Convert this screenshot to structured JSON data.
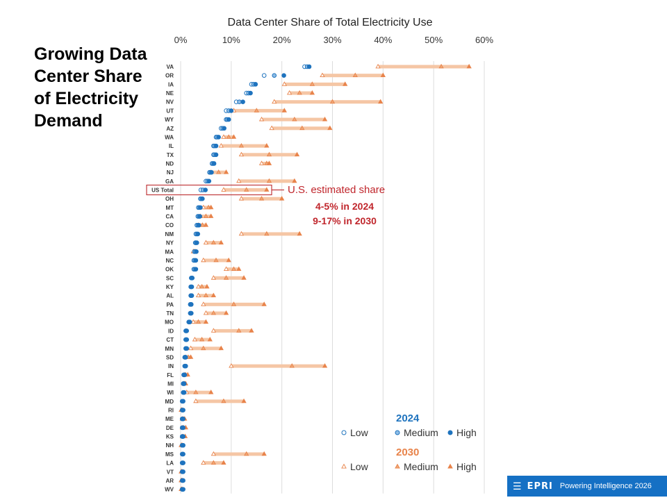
{
  "slide": {
    "title": "Growing Data Center Share of Electricity Demand"
  },
  "footer": {
    "menu_icon": "hamburger-menu-icon",
    "logo_text": "EPRI",
    "text": "Powering Intelligence 2026"
  },
  "chart_data": {
    "type": "scatter",
    "title": "Data Center Share of Total Electricity Use",
    "x_tick_labels": [
      "0%",
      "10%",
      "20%",
      "30%",
      "40%",
      "50%",
      "60%"
    ],
    "xlim": [
      0,
      60
    ],
    "grid": true,
    "states": [
      "VA",
      "OR",
      "IA",
      "NE",
      "NV",
      "UT",
      "WY",
      "AZ",
      "WA",
      "IL",
      "TX",
      "ND",
      "NJ",
      "GA",
      "US Total",
      "OH",
      "MT",
      "CA",
      "CO",
      "NM",
      "NY",
      "MA",
      "NC",
      "OK",
      "SC",
      "KY",
      "AL",
      "PA",
      "TN",
      "MO",
      "ID",
      "CT",
      "MN",
      "SD",
      "IN",
      "FL",
      "MI",
      "WI",
      "MD",
      "RI",
      "ME",
      "DE",
      "KS",
      "NH",
      "MS",
      "LA",
      "VT",
      "AR",
      "WV"
    ],
    "share_2024": {
      "low": [
        24.5,
        16.5,
        14.0,
        13.0,
        11.0,
        9.0,
        9.0,
        8.0,
        7.0,
        6.5,
        6.5,
        6.2,
        5.7,
        5.0,
        4.0,
        3.9,
        3.5,
        3.4,
        3.2,
        3.0,
        2.9,
        2.7,
        2.6,
        2.6,
        2.1,
        2.0,
        2.0,
        1.9,
        1.9,
        1.6,
        1.0,
        1.0,
        1.0,
        0.8,
        0.8,
        0.6,
        0.5,
        0.5,
        0.3,
        0.3,
        0.3,
        0.3,
        0.3,
        0.3,
        0.3,
        0.3,
        0.3,
        0.3,
        0.3
      ],
      "medium": [
        25.0,
        18.5,
        14.4,
        13.4,
        11.6,
        9.5,
        9.2,
        8.3,
        7.2,
        6.7,
        6.7,
        6.4,
        5.9,
        5.3,
        4.4,
        4.1,
        3.7,
        3.6,
        3.4,
        3.2,
        3.0,
        2.9,
        2.8,
        2.8,
        2.2,
        2.1,
        2.1,
        2.0,
        2.0,
        1.7,
        1.1,
        1.1,
        1.1,
        0.9,
        0.9,
        0.7,
        0.6,
        0.6,
        0.4,
        0.4,
        0.4,
        0.4,
        0.4,
        0.4,
        0.4,
        0.4,
        0.4,
        0.4,
        0.4
      ],
      "high": [
        25.4,
        20.4,
        14.8,
        13.8,
        12.3,
        10.0,
        9.5,
        8.6,
        7.5,
        7.0,
        7.0,
        6.6,
        6.1,
        5.6,
        4.9,
        4.3,
        3.9,
        3.8,
        3.6,
        3.4,
        3.2,
        3.1,
        3.0,
        3.0,
        2.3,
        2.2,
        2.2,
        2.1,
        2.1,
        1.8,
        1.2,
        1.2,
        1.2,
        1.0,
        1.0,
        0.8,
        0.7,
        0.7,
        0.5,
        0.5,
        0.5,
        0.5,
        0.5,
        0.5,
        0.5,
        0.5,
        0.5,
        0.5,
        0.5
      ]
    },
    "share_2030": {
      "low": [
        39.0,
        28.0,
        20.5,
        21.5,
        18.5,
        10.5,
        16.0,
        18.0,
        8.5,
        8.0,
        12.0,
        16.0,
        6.0,
        11.5,
        8.5,
        12.0,
        4.5,
        3.9,
        3.5,
        12.0,
        5.0,
        2.5,
        4.5,
        9.0,
        6.5,
        3.5,
        3.5,
        4.5,
        5.0,
        2.5,
        6.5,
        2.8,
        2.0,
        1.0,
        10.0,
        0.8,
        0.6,
        1.2,
        3.0,
        0.1,
        0.3,
        0.3,
        0.3,
        0.1,
        6.5,
        4.5,
        0.1,
        0.1,
        0.1
      ],
      "medium": [
        51.5,
        34.5,
        26.0,
        23.5,
        30.0,
        15.0,
        22.5,
        24.0,
        9.5,
        12.0,
        17.5,
        17.0,
        7.5,
        17.5,
        13.0,
        16.0,
        5.5,
        5.0,
        4.3,
        17.0,
        6.5,
        2.7,
        7.0,
        10.5,
        9.0,
        4.2,
        5.0,
        10.5,
        6.5,
        3.5,
        11.5,
        4.2,
        4.5,
        1.5,
        22.0,
        1.0,
        0.8,
        3.0,
        8.5,
        0.2,
        0.5,
        0.6,
        0.5,
        0.2,
        13.0,
        6.5,
        0.2,
        0.2,
        0.2
      ],
      "high": [
        57.0,
        40.0,
        32.5,
        26.0,
        39.5,
        20.5,
        28.5,
        29.5,
        10.5,
        17.0,
        23.0,
        17.5,
        9.0,
        22.5,
        17.0,
        20.0,
        6.0,
        6.0,
        5.0,
        23.5,
        8.0,
        3.0,
        9.5,
        11.5,
        12.5,
        5.2,
        6.5,
        16.5,
        9.0,
        5.0,
        14.0,
        5.8,
        8.0,
        2.0,
        28.5,
        1.4,
        1.0,
        6.0,
        12.5,
        0.3,
        0.8,
        1.0,
        0.9,
        0.3,
        16.5,
        8.5,
        0.3,
        0.3,
        0.3
      ]
    },
    "highlight": {
      "label": "US Total",
      "callout": "U.S. estimated share",
      "line1": "4-5% in 2024",
      "line2": "9-17% in 2030"
    },
    "legend": {
      "placement": "bottom-right",
      "groups": [
        {
          "year": "2024",
          "color": "#1e73be",
          "items": [
            "Low",
            "Medium",
            "High"
          ]
        },
        {
          "year": "2030",
          "color": "#e8834a",
          "items": [
            "Low",
            "Medium",
            "High"
          ]
        }
      ]
    },
    "colors": {
      "blue": "#1e73be",
      "blue_light": "#8fbde6",
      "orange": "#e8834a",
      "orange_bar": "#f5c6a5",
      "highlight_red": "#c0393c",
      "callout_red": "#c0262c"
    }
  }
}
